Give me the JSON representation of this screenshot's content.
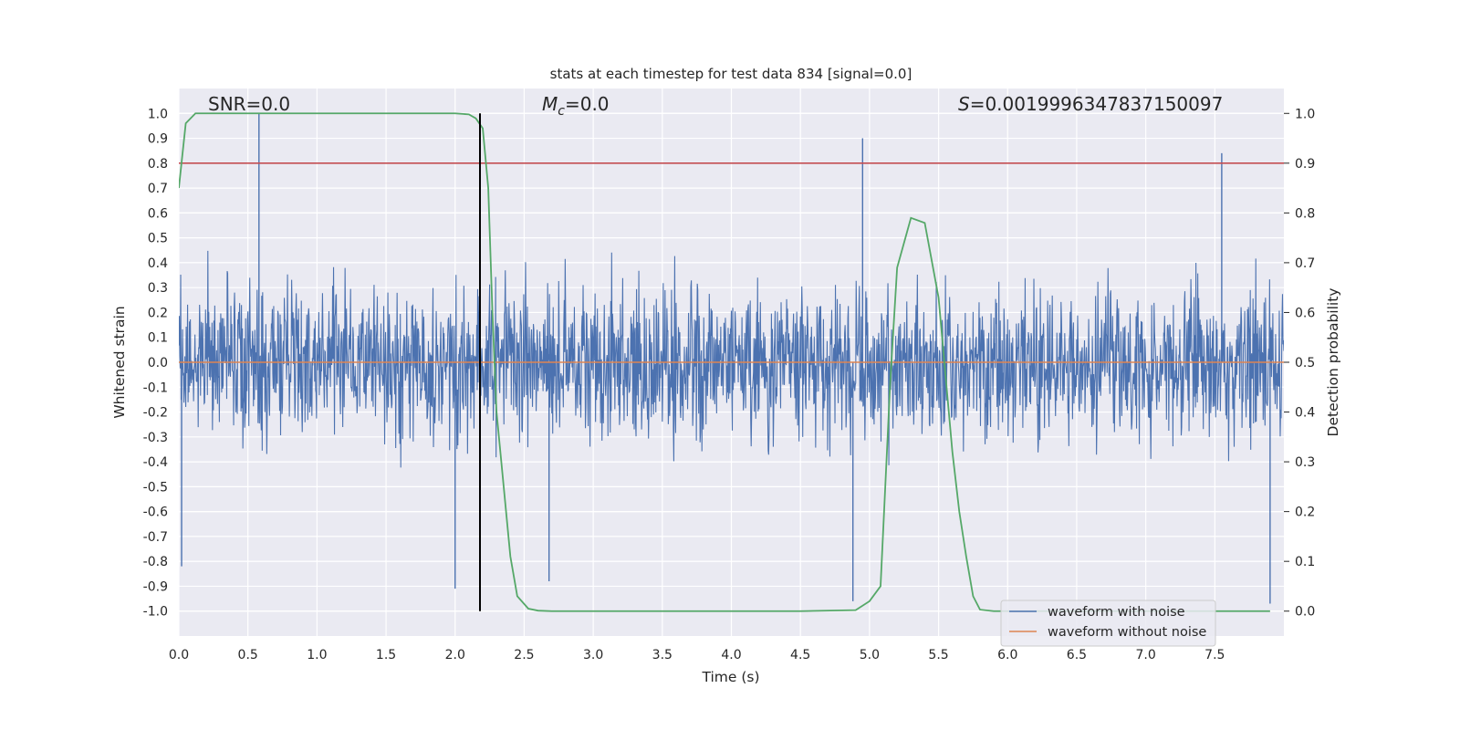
{
  "chart_data": {
    "type": "line",
    "title": "stats at each timestep for test data 834 [signal=0.0]",
    "xlabel": "Time (s)",
    "ylabel": "Whitened strain",
    "ylabel_right": "Detection probability",
    "xlim": [
      0.0,
      8.0
    ],
    "ylim": [
      -1.1,
      1.1
    ],
    "ylim_right": [
      -0.05,
      1.05
    ],
    "x_ticks": [
      "0.0",
      "0.5",
      "1.0",
      "1.5",
      "2.0",
      "2.5",
      "3.0",
      "3.5",
      "4.0",
      "4.5",
      "5.0",
      "5.5",
      "6.0",
      "6.5",
      "7.0",
      "7.5"
    ],
    "y_ticks": [
      "1.0",
      "0.9",
      "0.8",
      "0.7",
      "0.6",
      "0.5",
      "0.4",
      "0.3",
      "0.2",
      "0.1",
      "0.0",
      "-0.1",
      "-0.2",
      "-0.3",
      "-0.4",
      "-0.5",
      "-0.6",
      "-0.7",
      "-0.8",
      "-0.9",
      "-1.0"
    ],
    "y_ticks_right": [
      "1.0",
      "0.9",
      "0.8",
      "0.7",
      "0.6",
      "0.5",
      "0.4",
      "0.3",
      "0.2",
      "0.1",
      "0.0"
    ],
    "grid": true,
    "legend_position": "bottom-right",
    "annotations": {
      "snr": "SNR=0.0",
      "mc_symbol": "M",
      "mc_subscript": "c",
      "mc_value": "=0.0",
      "s_symbol": "S",
      "s_value": "=0.0019996347837150097"
    },
    "series": [
      {
        "name": "waveform with noise",
        "color": "#4c72b0",
        "axis": "left",
        "description": "dense whitened noise, amplitude mostly within ±0.5",
        "notable_peaks": [
          [
            0.58,
            1.0
          ],
          [
            4.95,
            0.9
          ],
          [
            7.55,
            0.84
          ],
          [
            0.02,
            -0.82
          ],
          [
            2.0,
            -0.91
          ],
          [
            2.68,
            -0.88
          ],
          [
            4.88,
            -0.96
          ],
          [
            7.9,
            -0.97
          ]
        ]
      },
      {
        "name": "waveform without noise",
        "color": "#dd8452",
        "axis": "left",
        "x": [
          0.0,
          8.0
        ],
        "y": [
          0.0,
          0.0
        ]
      },
      {
        "name": "Detection probability",
        "color": "#55a868",
        "axis": "right",
        "in_legend": false,
        "x": [
          0.0,
          0.05,
          0.12,
          0.3,
          1.0,
          2.0,
          2.1,
          2.15,
          2.2,
          2.24,
          2.27,
          2.3,
          2.4,
          2.45,
          2.53,
          2.6,
          2.7,
          3.5,
          4.5,
          4.9,
          5.0,
          5.08,
          5.15,
          5.2,
          5.3,
          5.4,
          5.5,
          5.6,
          5.65,
          5.7,
          5.75,
          5.8,
          5.9,
          7.9
        ],
        "y": [
          0.85,
          0.98,
          1.0,
          1.0,
          1.0,
          1.0,
          0.998,
          0.99,
          0.97,
          0.85,
          0.6,
          0.4,
          0.11,
          0.03,
          0.005,
          0.001,
          0.0,
          0.0,
          0.0,
          0.002,
          0.02,
          0.05,
          0.46,
          0.69,
          0.79,
          0.78,
          0.63,
          0.32,
          0.2,
          0.11,
          0.03,
          0.003,
          0.0,
          0.0
        ]
      },
      {
        "name": "threshold",
        "color": "#c44e52",
        "axis": "right",
        "in_legend": false,
        "x": [
          0.0,
          8.0
        ],
        "y": [
          0.9,
          0.9
        ]
      },
      {
        "name": "marker",
        "color": "#000000",
        "axis": "right",
        "in_legend": false,
        "type": "vline",
        "x": 2.18,
        "y": [
          0.0,
          1.0
        ]
      }
    ]
  }
}
